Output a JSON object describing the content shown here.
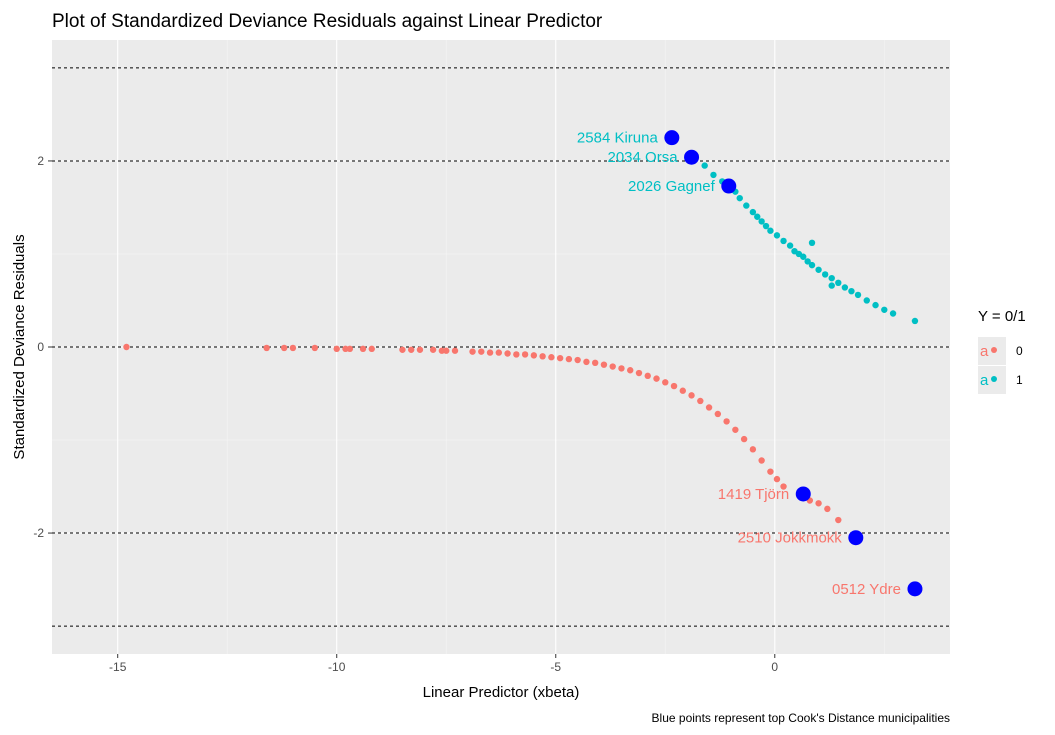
{
  "chart_data": {
    "type": "scatter",
    "title": "Plot of Standardized Deviance Residuals against Linear Predictor",
    "xlabel": "Linear Predictor (xbeta)",
    "ylabel": "Standardized Deviance Residuals",
    "caption": "Blue points represent top Cook's Distance municipalities",
    "xlim": [
      -16.5,
      4.0
    ],
    "ylim": [
      -3.3,
      3.3
    ],
    "x_ticks": [
      -15,
      -10,
      -5,
      0
    ],
    "x_tick_labels": [
      "-15",
      "-10",
      "-5",
      "0"
    ],
    "y_ticks": [
      -2,
      0,
      2
    ],
    "y_tick_labels": [
      "-2",
      "0",
      "2"
    ],
    "grid": true,
    "reference_lines_y": [
      -3,
      -2,
      0,
      2,
      3
    ],
    "legend": {
      "title": "Y = 0/1",
      "position": "right",
      "key_glyph": "a",
      "entries": [
        {
          "label": "0",
          "color": "#F8766D"
        },
        {
          "label": "1",
          "color": "#00BFC4"
        }
      ]
    },
    "series": [
      {
        "name": "0",
        "color": "#F8766D",
        "points": [
          [
            -14.8,
            0.0
          ],
          [
            -11.6,
            -0.01
          ],
          [
            -11.2,
            -0.01
          ],
          [
            -11.0,
            -0.01
          ],
          [
            -10.5,
            -0.01
          ],
          [
            -10.0,
            -0.02
          ],
          [
            -9.8,
            -0.02
          ],
          [
            -9.7,
            -0.02
          ],
          [
            -9.4,
            -0.02
          ],
          [
            -9.2,
            -0.02
          ],
          [
            -8.5,
            -0.03
          ],
          [
            -8.3,
            -0.03
          ],
          [
            -8.1,
            -0.03
          ],
          [
            -7.8,
            -0.03
          ],
          [
            -7.6,
            -0.04
          ],
          [
            -7.5,
            -0.04
          ],
          [
            -7.3,
            -0.04
          ],
          [
            -6.9,
            -0.05
          ],
          [
            -6.7,
            -0.05
          ],
          [
            -6.5,
            -0.06
          ],
          [
            -6.3,
            -0.06
          ],
          [
            -6.1,
            -0.07
          ],
          [
            -5.9,
            -0.08
          ],
          [
            -5.7,
            -0.08
          ],
          [
            -5.5,
            -0.09
          ],
          [
            -5.3,
            -0.1
          ],
          [
            -5.1,
            -0.11
          ],
          [
            -4.9,
            -0.12
          ],
          [
            -4.7,
            -0.13
          ],
          [
            -4.5,
            -0.14
          ],
          [
            -4.3,
            -0.16
          ],
          [
            -4.1,
            -0.17
          ],
          [
            -3.9,
            -0.19
          ],
          [
            -3.7,
            -0.21
          ],
          [
            -3.5,
            -0.23
          ],
          [
            -3.3,
            -0.25
          ],
          [
            -3.1,
            -0.28
          ],
          [
            -2.9,
            -0.31
          ],
          [
            -2.7,
            -0.34
          ],
          [
            -2.5,
            -0.38
          ],
          [
            -2.3,
            -0.42
          ],
          [
            -2.1,
            -0.47
          ],
          [
            -1.9,
            -0.52
          ],
          [
            -1.7,
            -0.58
          ],
          [
            -1.5,
            -0.65
          ],
          [
            -1.3,
            -0.72
          ],
          [
            -1.1,
            -0.8
          ],
          [
            -0.9,
            -0.89
          ],
          [
            -0.7,
            -0.99
          ],
          [
            -0.5,
            -1.1
          ],
          [
            -0.3,
            -1.22
          ],
          [
            -0.1,
            -1.34
          ],
          [
            0.05,
            -1.42
          ],
          [
            0.2,
            -1.5
          ],
          [
            0.8,
            -1.65
          ],
          [
            1.0,
            -1.68
          ],
          [
            1.2,
            -1.74
          ],
          [
            1.45,
            -1.86
          ]
        ]
      },
      {
        "name": "1",
        "color": "#00BFC4",
        "points": [
          [
            -1.6,
            1.95
          ],
          [
            -1.4,
            1.85
          ],
          [
            -1.2,
            1.78
          ],
          [
            -0.9,
            1.67
          ],
          [
            -0.8,
            1.6
          ],
          [
            -0.65,
            1.52
          ],
          [
            -0.5,
            1.45
          ],
          [
            -0.4,
            1.4
          ],
          [
            -0.3,
            1.35
          ],
          [
            -0.2,
            1.3
          ],
          [
            -0.1,
            1.25
          ],
          [
            0.05,
            1.2
          ],
          [
            0.2,
            1.14
          ],
          [
            0.35,
            1.09
          ],
          [
            0.45,
            1.03
          ],
          [
            0.55,
            1.0
          ],
          [
            0.65,
            0.97
          ],
          [
            0.75,
            0.92
          ],
          [
            0.85,
            0.88
          ],
          [
            1.0,
            0.83
          ],
          [
            1.15,
            0.78
          ],
          [
            1.3,
            0.74
          ],
          [
            1.45,
            0.69
          ],
          [
            1.6,
            0.64
          ],
          [
            1.75,
            0.6
          ],
          [
            1.9,
            0.56
          ],
          [
            2.1,
            0.5
          ],
          [
            2.3,
            0.45
          ],
          [
            2.5,
            0.4
          ],
          [
            2.7,
            0.36
          ],
          [
            3.2,
            0.28
          ],
          [
            0.85,
            1.12
          ],
          [
            1.3,
            0.66
          ]
        ]
      }
    ],
    "highlighted": {
      "color": "#0000FF",
      "description": "Blue points represent top Cook's Distance municipalities",
      "points": [
        {
          "x": -2.35,
          "y": 2.25,
          "label": "2584 Kiruna",
          "label_color": "#00BFC4"
        },
        {
          "x": -1.9,
          "y": 2.04,
          "label": "2034 Orsa",
          "label_color": "#00BFC4"
        },
        {
          "x": -1.05,
          "y": 1.73,
          "label": "2026 Gagnef",
          "label_color": "#00BFC4"
        },
        {
          "x": 0.65,
          "y": -1.58,
          "label": "1419 Tjörn",
          "label_color": "#F8766D"
        },
        {
          "x": 1.85,
          "y": -2.05,
          "label": "2510 Jokkmokk",
          "label_color": "#F8766D"
        },
        {
          "x": 3.2,
          "y": -2.6,
          "label": "0512 Ydre",
          "label_color": "#F8766D"
        }
      ]
    }
  }
}
